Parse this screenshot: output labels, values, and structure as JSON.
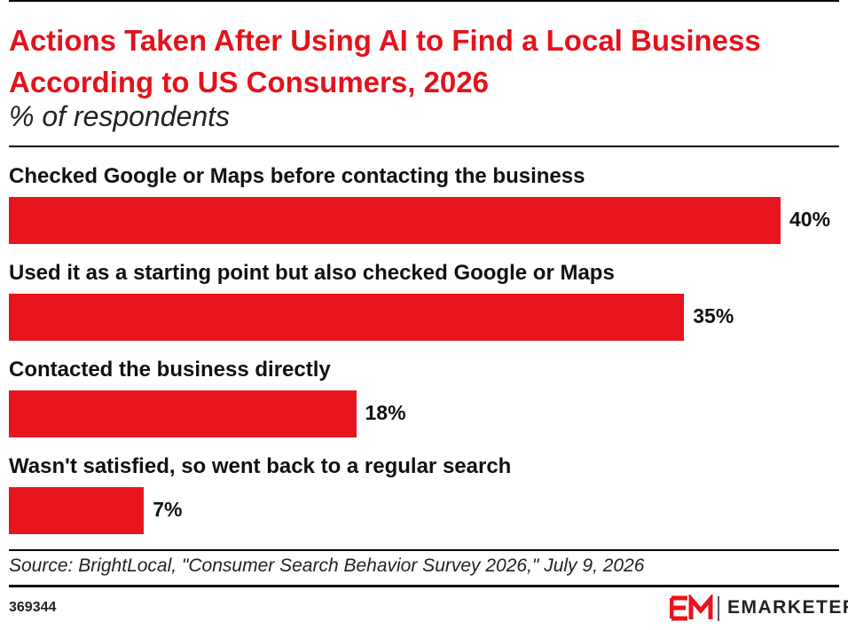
{
  "chart_data": {
    "type": "bar",
    "orientation": "horizontal",
    "title": "Actions Taken After Using AI to Find a Local Business According to US Consumers, 2026",
    "subtitle": "% of respondents",
    "categories": [
      "Checked Google or Maps before contacting the business",
      "Used it as a starting point but also checked Google or Maps",
      "Contacted the business directly",
      "Wasn't satisfied, so went back to a regular search"
    ],
    "values": [
      40,
      35,
      18,
      7
    ],
    "value_labels": [
      "40%",
      "35%",
      "18%",
      "7%"
    ],
    "color": "#e8141e",
    "source": "Source: BrightLocal, \"Consumer Search Behavior Survey 2026,\" July 9, 2026",
    "chart_id": "369344",
    "brand": "EMARKETER"
  }
}
